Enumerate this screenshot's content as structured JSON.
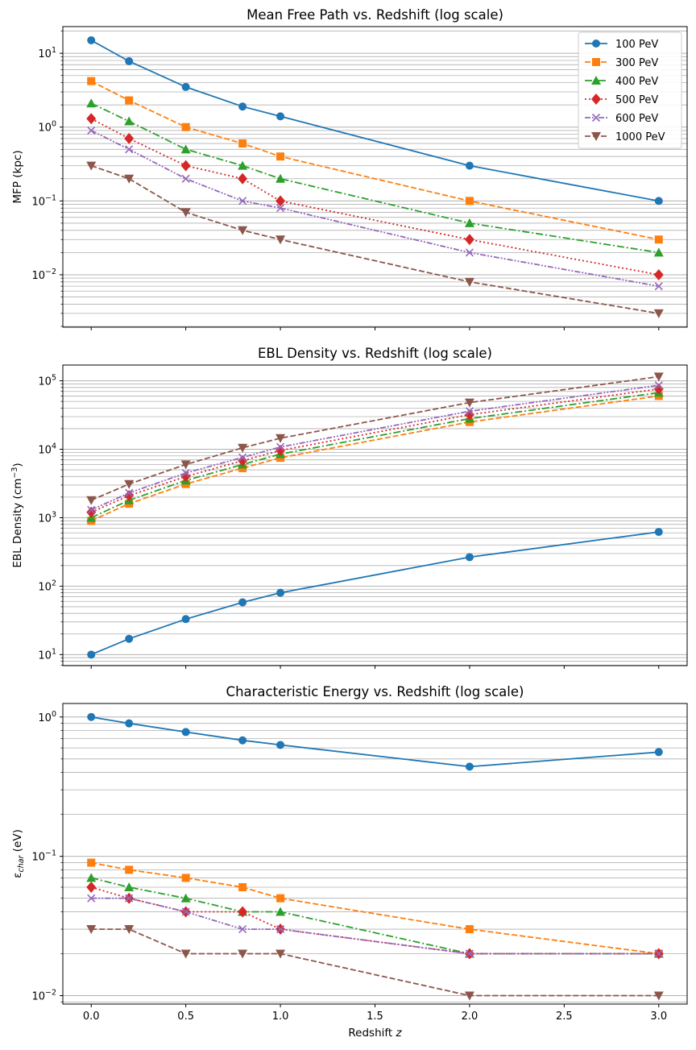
{
  "figure": {
    "xlabel": "Redshift z"
  },
  "legend": [
    {
      "label": "100 PeV",
      "color": "#1f77b4",
      "marker": "circle",
      "dash": "solid"
    },
    {
      "label": "300 PeV",
      "color": "#ff7f0e",
      "marker": "square",
      "dash": "dashed"
    },
    {
      "label": "400 PeV",
      "color": "#2ca02c",
      "marker": "triangle-up",
      "dash": "dashdot"
    },
    {
      "label": "500 PeV",
      "color": "#d62728",
      "marker": "diamond",
      "dash": "dotted"
    },
    {
      "label": "600 PeV",
      "color": "#9467bd",
      "marker": "x",
      "dash": "dashdotdot"
    },
    {
      "label": "1000 PeV",
      "color": "#8c564b",
      "marker": "triangle-down",
      "dash": "dashed"
    }
  ],
  "chart_data": [
    {
      "type": "line",
      "yscale": "log",
      "title": "Mean Free Path vs. Redshift (log scale)",
      "xlabel": "",
      "ylabel": "MFP (kpc)",
      "ylim": [
        0.00195,
        23
      ],
      "xlim": [
        -0.15,
        3.15
      ],
      "yticks": [
        {
          "value": 0.01,
          "exp": "−2"
        },
        {
          "value": 0.1,
          "exp": "−1"
        },
        {
          "value": 1,
          "exp": "0"
        },
        {
          "value": 10,
          "exp": "1"
        }
      ],
      "legend_position": "top-right",
      "x": [
        0.0,
        0.2,
        0.5,
        0.8,
        1.0,
        2.0,
        3.0
      ],
      "series": [
        {
          "name": "100 PeV",
          "values": [
            15,
            7.8,
            3.5,
            1.9,
            1.4,
            0.3,
            0.1
          ]
        },
        {
          "name": "300 PeV",
          "values": [
            4.2,
            2.3,
            1.0,
            0.6,
            0.4,
            0.1,
            0.03
          ]
        },
        {
          "name": "400 PeV",
          "values": [
            2.1,
            1.2,
            0.5,
            0.3,
            0.2,
            0.05,
            0.02
          ]
        },
        {
          "name": "500 PeV",
          "values": [
            1.3,
            0.7,
            0.3,
            0.2,
            0.1,
            0.03,
            0.01
          ]
        },
        {
          "name": "600 PeV",
          "values": [
            0.9,
            0.5,
            0.2,
            0.1,
            0.08,
            0.02,
            0.007
          ]
        },
        {
          "name": "1000 PeV",
          "values": [
            0.3,
            0.2,
            0.07,
            0.04,
            0.03,
            0.008,
            0.003
          ]
        }
      ]
    },
    {
      "type": "line",
      "yscale": "log",
      "title": "EBL Density vs. Redshift (log scale)",
      "xlabel": "",
      "ylabel": "EBL Density (cm",
      "ylabel_exp": "−3",
      "ylabel_close": ")",
      "ylim": [
        6.9,
        170000
      ],
      "xlim": [
        -0.15,
        3.15
      ],
      "yticks": [
        {
          "value": 10,
          "exp": "1"
        },
        {
          "value": 100,
          "exp": "2"
        },
        {
          "value": 1000,
          "exp": "3"
        },
        {
          "value": 10000,
          "exp": "4"
        },
        {
          "value": 100000,
          "exp": "5"
        }
      ],
      "x": [
        0.0,
        0.2,
        0.5,
        0.8,
        1.0,
        2.0,
        3.0
      ],
      "series": [
        {
          "name": "100 PeV",
          "values": [
            10,
            17,
            33,
            58,
            80,
            265,
            620
          ]
        },
        {
          "name": "300 PeV",
          "values": [
            900,
            1600,
            3100,
            5300,
            7500,
            25000,
            60000
          ]
        },
        {
          "name": "400 PeV",
          "values": [
            1000,
            1800,
            3500,
            6000,
            8500,
            28000,
            67000
          ]
        },
        {
          "name": "500 PeV",
          "values": [
            1200,
            2100,
            4000,
            6800,
            9600,
            32000,
            76000
          ]
        },
        {
          "name": "600 PeV",
          "values": [
            1300,
            2300,
            4500,
            7600,
            10800,
            36000,
            86000
          ]
        },
        {
          "name": "1000 PeV",
          "values": [
            1800,
            3100,
            6000,
            10500,
            14500,
            48000,
            115000
          ]
        }
      ]
    },
    {
      "type": "line",
      "yscale": "log",
      "title": "Characteristic Energy vs. Redshift (log scale)",
      "xlabel": "Redshift z",
      "ylabel": "ε",
      "ylabel_sub": "char",
      "ylabel_unit": " (eV)",
      "ylim": [
        0.0087,
        1.25
      ],
      "xlim": [
        -0.15,
        3.15
      ],
      "yticks": [
        {
          "value": 0.01,
          "exp": "−2"
        },
        {
          "value": 0.1,
          "exp": "−1"
        },
        {
          "value": 1,
          "exp": "0"
        }
      ],
      "xticks": [
        "0.0",
        "0.5",
        "1.0",
        "1.5",
        "2.0",
        "2.5",
        "3.0"
      ],
      "x": [
        0.0,
        0.2,
        0.5,
        0.8,
        1.0,
        2.0,
        3.0
      ],
      "series": [
        {
          "name": "100 PeV",
          "values": [
            1.0,
            0.9,
            0.78,
            0.68,
            0.63,
            0.44,
            0.56
          ]
        },
        {
          "name": "300 PeV",
          "values": [
            0.09,
            0.08,
            0.07,
            0.06,
            0.05,
            0.03,
            0.02
          ]
        },
        {
          "name": "400 PeV",
          "values": [
            0.07,
            0.06,
            0.05,
            0.04,
            0.04,
            0.02,
            0.02
          ]
        },
        {
          "name": "500 PeV",
          "values": [
            0.06,
            0.05,
            0.04,
            0.04,
            0.03,
            0.02,
            0.02
          ]
        },
        {
          "name": "600 PeV",
          "values": [
            0.05,
            0.05,
            0.04,
            0.03,
            0.03,
            0.02,
            0.02
          ]
        },
        {
          "name": "1000 PeV",
          "values": [
            0.03,
            0.03,
            0.02,
            0.02,
            0.02,
            0.01,
            0.01
          ]
        }
      ]
    }
  ]
}
